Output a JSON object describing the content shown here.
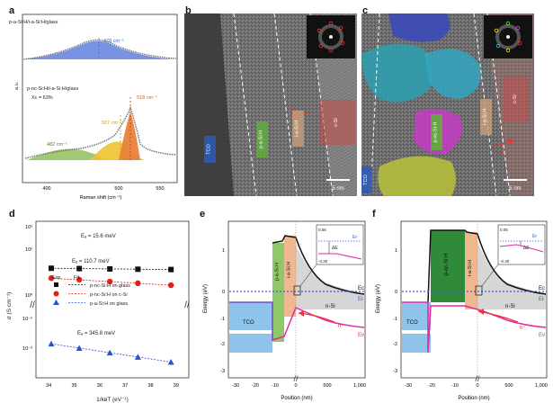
{
  "panels": {
    "a": {
      "letter": "a"
    },
    "b": {
      "letter": "b"
    },
    "c": {
      "letter": "c"
    },
    "d": {
      "letter": "d"
    },
    "e": {
      "letter": "e"
    },
    "f": {
      "letter": "f"
    }
  },
  "panel_a": {
    "top_sample": "p-a-Si:H/i-a-Si:H/glass",
    "top_peak": "478 cm⁻¹",
    "bottom_sample": "p-nc-Si:H/i-a-Si:H/glass",
    "xc": "Xᴄ = 63%",
    "peaks": [
      "482 cm⁻¹",
      "507 cm⁻¹",
      "518 cm⁻¹"
    ],
    "ylabel": "a.u.",
    "xlabel": "Raman shift (cm⁻¹)",
    "xticks": [
      "400",
      "500",
      "550"
    ],
    "colors": {
      "blue": "#4a6fd8",
      "green": "#8fbf5a",
      "yellow": "#f0c230",
      "orange": "#e8823a"
    }
  },
  "panel_b": {
    "labels": [
      "TCO",
      "p-a-Si:H",
      "i-a-Si:H",
      "c-Si"
    ],
    "inset_label": "dp",
    "scalebar": "5 nm"
  },
  "panel_c": {
    "labels": [
      "TCO",
      "p-nc-Si:H",
      "i-a-Si:H",
      "c-Si"
    ],
    "inset_label": "c-Si",
    "scalebar": "5 nm"
  },
  "panel_d": {
    "ylabel": "σ (S cm⁻¹)",
    "xlabel": "1/kʙT (eV⁻¹)",
    "annotations": [
      "Eₐ = 15.6 meV",
      "Eₐ = 110.7 meV",
      "Eₐ = 345.8 meV"
    ],
    "legend_header": [
      "Exp.",
      "Fit."
    ],
    "legend": [
      "p-nc-Si:H on glass",
      "p-nc-Si:H on c-Si",
      "p-a-Si:H on glass"
    ],
    "yticks": [
      "10³",
      "10²",
      "10⁰",
      "10⁻²",
      "10⁻³"
    ],
    "xticks": [
      "34",
      "35",
      "36",
      "37",
      "38",
      "39"
    ]
  },
  "chart_data": {
    "type": "scatter",
    "title": "",
    "xlabel": "1/kBT (eV⁻¹)",
    "ylabel": "σ (S cm⁻¹)",
    "yscale": "log",
    "x": [
      34.1,
      35.2,
      36.4,
      37.5,
      38.8
    ],
    "series": [
      {
        "name": "p-nc-Si:H on glass",
        "marker": "square",
        "color": "#111111",
        "values": [
          15,
          14.5,
          14,
          13.6,
          13.2
        ]
      },
      {
        "name": "p-nc-Si:H on c-Si",
        "marker": "circle",
        "color": "#e0201b",
        "values": [
          5.5,
          4.7,
          3.9,
          3.3,
          2.7
        ]
      },
      {
        "name": "p-a-Si:H on glass",
        "marker": "triangle",
        "color": "#2853c9",
        "values": [
          0.00014,
          0.0001,
          7e-05,
          5e-05,
          3.4e-05
        ]
      }
    ]
  },
  "panel_e": {
    "ylabel": "Energy (eV)",
    "xlabel": "Position (nm)",
    "layers": [
      "TCO",
      "p-a-Si:H",
      "i-a-Si:H",
      "n-Si"
    ],
    "labels": {
      "ec": "Eᴄ",
      "ef": "Eғ",
      "ev": "Eᴠ",
      "hplus": "h⁺"
    },
    "inset": {
      "top": "0.06",
      "bottom": "-0.30",
      "de": "ΔE",
      "ef": "Eғ"
    },
    "yticks": [
      "1",
      "0",
      "-1",
      "-2",
      "-3"
    ],
    "xticks": [
      "-30",
      "-20",
      "-10",
      "0",
      "500",
      "1,000"
    ]
  },
  "panel_f": {
    "ylabel": "Energy (eV)",
    "xlabel": "Position (nm)",
    "layers": [
      "TCO",
      "p-nc-Si:H",
      "i-a-Si:H",
      "n-Si"
    ],
    "labels": {
      "ec": "Eᴄ",
      "ef": "Eғ",
      "ev": "Eᴠ",
      "hplus": "h⁺"
    },
    "inset": {
      "top": "0.05",
      "bottom": "-0.30",
      "de": "ΔE",
      "ef": "Eғ"
    },
    "yticks": [
      "1",
      "0",
      "-1",
      "-2",
      "-3"
    ],
    "xticks": [
      "-30",
      "-20",
      "-10",
      "0",
      "500",
      "1,000"
    ]
  }
}
